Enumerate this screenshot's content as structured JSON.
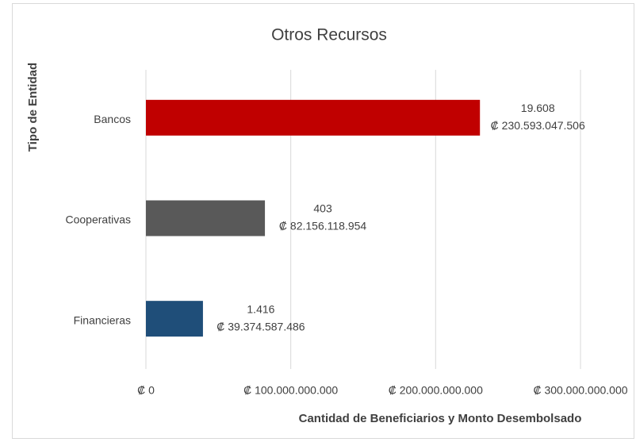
{
  "chart_data": {
    "type": "bar",
    "orientation": "horizontal",
    "title": "Otros Recursos",
    "y_label": "Tipo de Entidad",
    "x_label": "Cantidad de Beneficiarios y Monto Desembolsado",
    "categories": [
      "Bancos",
      "Cooperativas",
      "Financieras"
    ],
    "values": [
      230593047506,
      82156118954,
      39374587486
    ],
    "value_labels": [
      "₡ 230.593.047.506",
      "₡ 82.156.118.954",
      "₡ 39.374.587.486"
    ],
    "count_labels": [
      "19.608",
      "403",
      "1.416"
    ],
    "colors": [
      "#c00000",
      "#595959",
      "#1f4e79"
    ],
    "xlim": [
      0,
      300000000000
    ],
    "xticks": [
      {
        "value": 0,
        "label": "₡ 0"
      },
      {
        "value": 100000000000,
        "label": "₡ 100.000.000.000"
      },
      {
        "value": 200000000000,
        "label": "₡ 200.000.000.000"
      },
      {
        "value": 300000000000,
        "label": "₡ 300.000.000.000"
      }
    ],
    "grid": true
  }
}
